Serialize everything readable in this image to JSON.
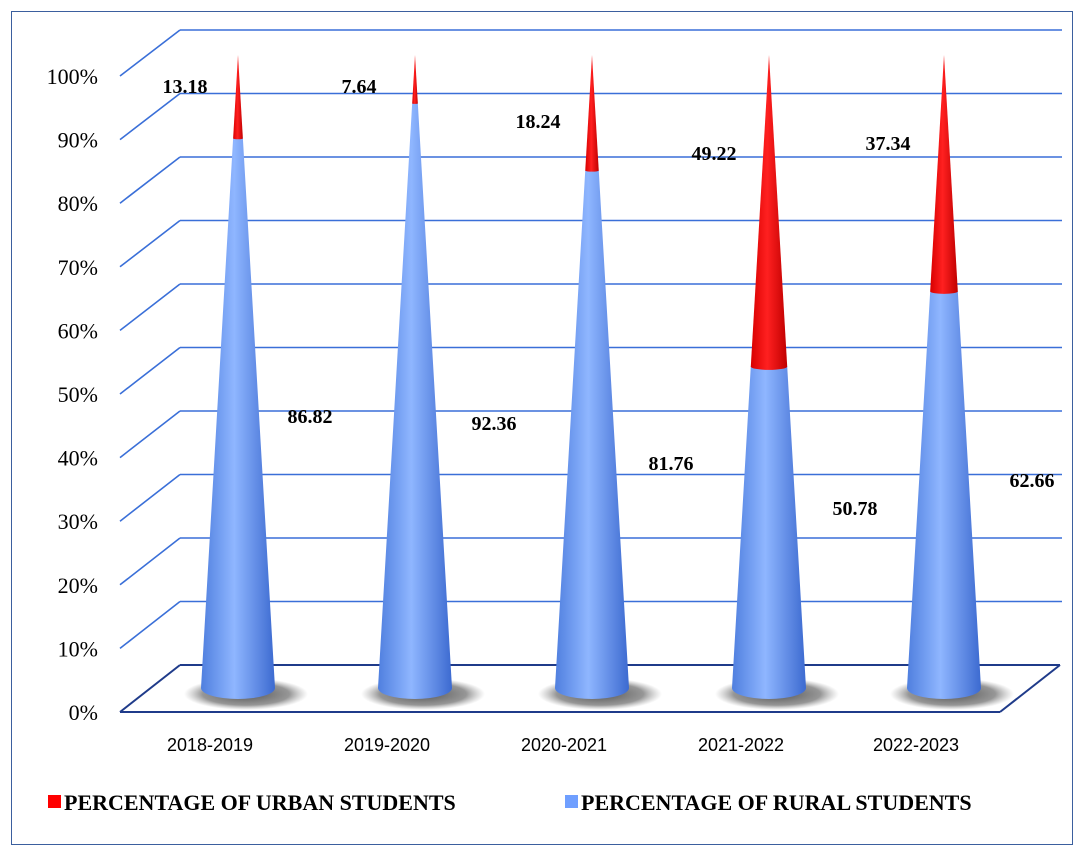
{
  "chart_data": {
    "type": "bar",
    "subtype": "stacked-100-cone-3d",
    "categories": [
      "2018-2019",
      "2019-2020",
      "2020-2021",
      "2021-2022",
      "2022-2023"
    ],
    "series": [
      {
        "name": "PERCENTAGE OF URBAN STUDENTS",
        "values": [
          13.18,
          7.64,
          18.24,
          49.22,
          37.34
        ],
        "color": "#ff0000"
      },
      {
        "name": "PERCENTAGE OF RURAL STUDENTS",
        "values": [
          86.82,
          92.36,
          81.76,
          50.78,
          62.66
        ],
        "color": "#6f9fff"
      }
    ],
    "urban_labels": [
      "13.18",
      "7.64",
      "18.24",
      "49.22",
      "37.34"
    ],
    "rural_labels": [
      "86.82",
      "92.36",
      "81.76",
      "50.78",
      "62.66"
    ],
    "yticks": [
      "0%",
      "10%",
      "20%",
      "30%",
      "40%",
      "50%",
      "60%",
      "70%",
      "80%",
      "90%",
      "100%"
    ],
    "ylim": [
      0,
      100
    ],
    "grid": true,
    "legend_position": "bottom",
    "colors": {
      "gridline": "#3a6fd8",
      "floor": "#1f3b8a",
      "urban": "#ff0000",
      "rural": "#6f9fff"
    }
  }
}
